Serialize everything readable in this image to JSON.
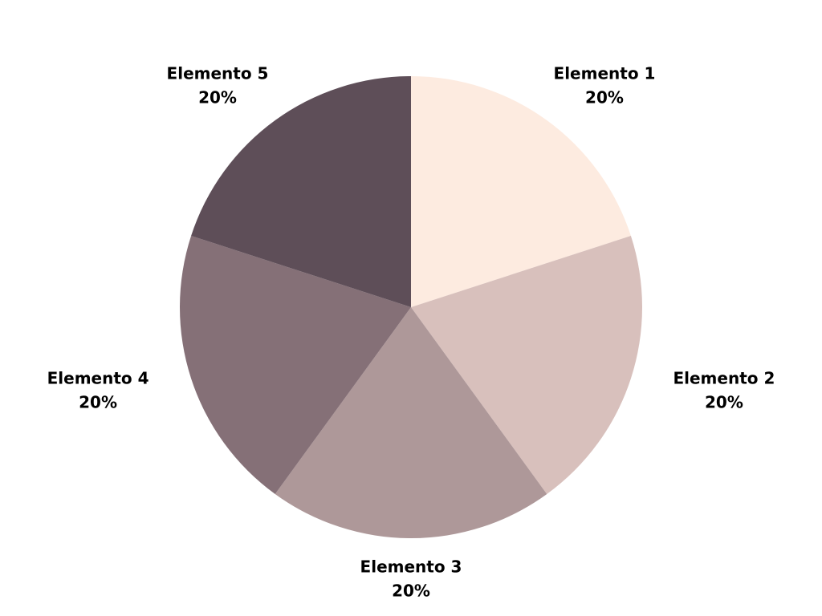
{
  "chart_data": {
    "type": "pie",
    "categories": [
      "Elemento 1",
      "Elemento 2",
      "Elemento 3",
      "Elemento 4",
      "Elemento 5"
    ],
    "values": [
      20,
      20,
      20,
      20,
      20
    ],
    "value_labels": [
      "20%",
      "20%",
      "20%",
      "20%",
      "20%"
    ],
    "colors": [
      "#fdebe0",
      "#d8c0bc",
      "#ae9899",
      "#857077",
      "#5e4e58"
    ]
  }
}
